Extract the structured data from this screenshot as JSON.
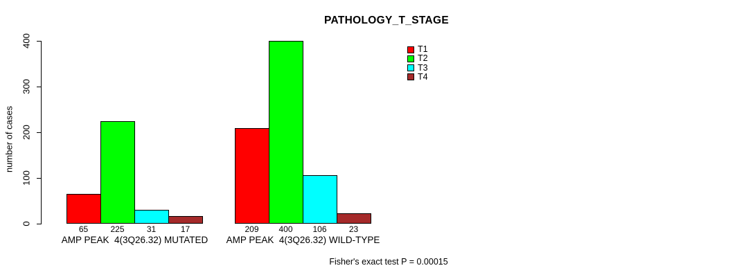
{
  "chart_data": {
    "type": "bar",
    "title": "PATHOLOGY_T_STAGE",
    "ylabel": "number of cases",
    "ylim": [
      0,
      400
    ],
    "yticks": [
      0,
      100,
      200,
      300,
      400
    ],
    "ytick_rotation": 90,
    "grid": false,
    "legend_position": "top-right",
    "categories": [
      "AMP PEAK  4(3Q26.32) MUTATED",
      "AMP PEAK  4(3Q26.32) WILD-TYPE"
    ],
    "category_keys": [
      "mutated",
      "wild-type"
    ],
    "series": [
      {
        "name": "T1",
        "color": "#ff0000",
        "values": [
          65,
          209
        ]
      },
      {
        "name": "T2",
        "color": "#00ff00",
        "values": [
          225,
          400
        ]
      },
      {
        "name": "T3",
        "color": "#00ffff",
        "values": [
          31,
          106
        ]
      },
      {
        "name": "T4",
        "color": "#a52a2a",
        "values": [
          17,
          23
        ]
      }
    ],
    "bar_value_labels": {
      "mutated": [
        "65",
        "225",
        "31",
        "17"
      ],
      "wild-type": [
        "209",
        "400",
        "106",
        "23"
      ]
    },
    "footnote": "Fisher's exact test P = 0.00015"
  },
  "colors": {
    "background": "#ffffff",
    "axis": "#000000",
    "text": "#000000"
  }
}
